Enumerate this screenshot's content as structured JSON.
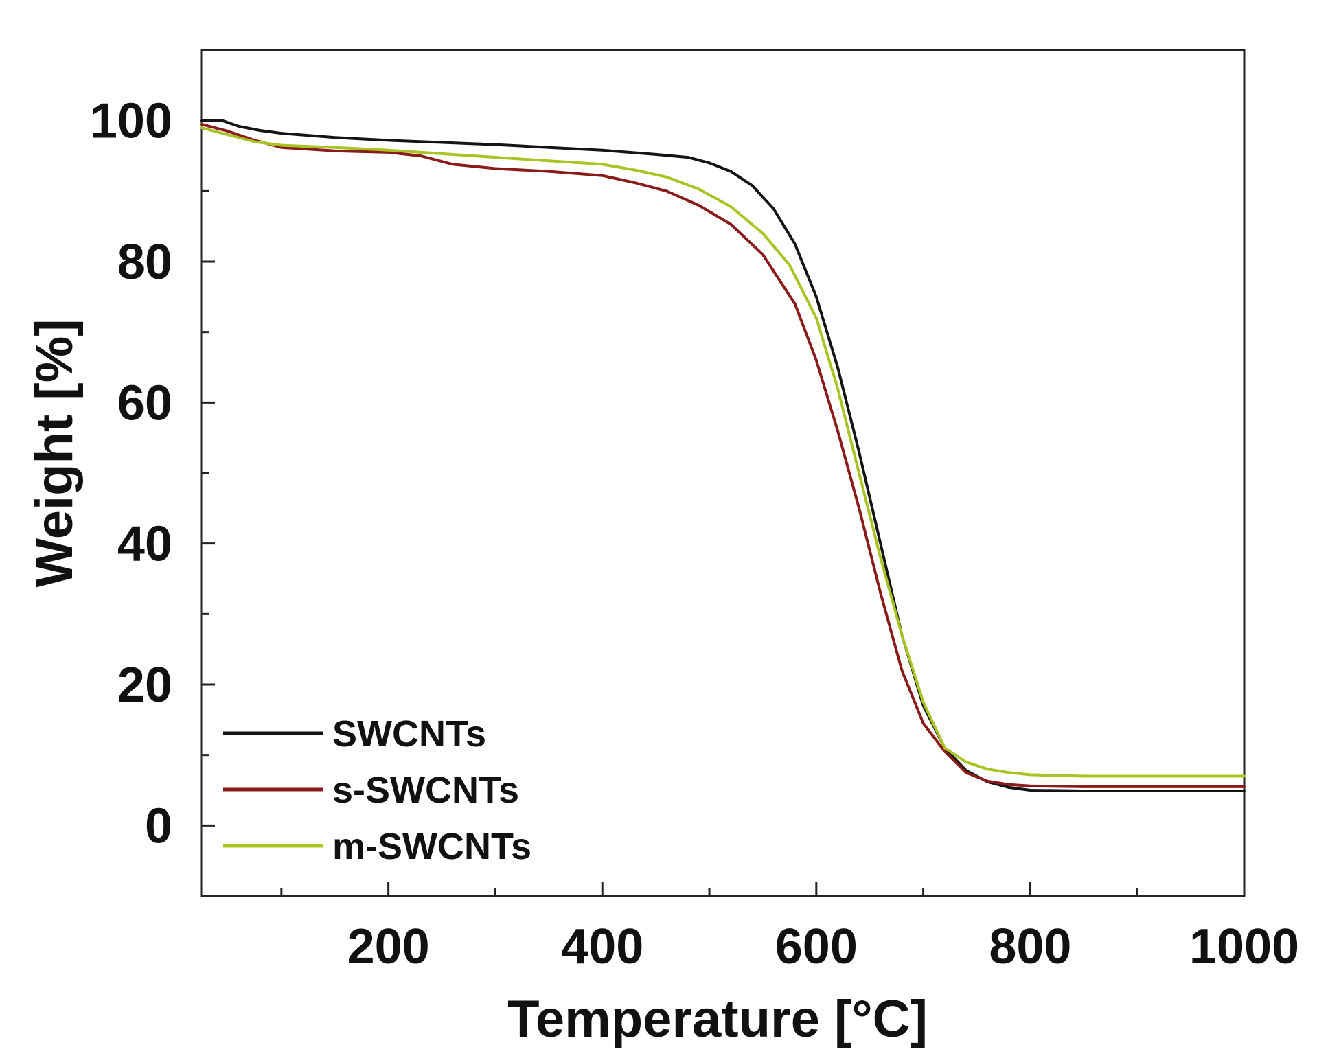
{
  "chart_data": {
    "type": "line",
    "title": "",
    "xlabel": "Temperature [°C]",
    "ylabel": "Weight [%]",
    "xlim": [
      25,
      1000
    ],
    "ylim": [
      -10,
      110
    ],
    "xticks": [
      200,
      400,
      600,
      800,
      1000
    ],
    "xminor": [
      100,
      300,
      500,
      700,
      900
    ],
    "yticks": [
      0,
      20,
      40,
      60,
      80,
      100
    ],
    "yminor": [
      10,
      30,
      50,
      70,
      90
    ],
    "grid": false,
    "legend_position": "bottom-left",
    "series": [
      {
        "name": "SWCNTs",
        "color": "#141414",
        "x": [
          25,
          45,
          60,
          80,
          100,
          150,
          200,
          250,
          300,
          350,
          400,
          450,
          480,
          500,
          520,
          540,
          560,
          580,
          600,
          620,
          640,
          660,
          680,
          700,
          720,
          740,
          760,
          780,
          800,
          850,
          900,
          950,
          1000
        ],
        "y": [
          100,
          100,
          99.2,
          98.6,
          98.2,
          97.6,
          97.2,
          96.9,
          96.6,
          96.2,
          95.8,
          95.2,
          94.8,
          94.0,
          92.8,
          90.8,
          87.5,
          82.5,
          75.0,
          65.0,
          53.0,
          40.0,
          27.0,
          17.0,
          11.0,
          7.8,
          6.2,
          5.4,
          5.0,
          4.9,
          4.9,
          4.9,
          4.9
        ]
      },
      {
        "name": "s-SWCNTs",
        "color": "#8b1a1a",
        "x": [
          25,
          50,
          75,
          100,
          150,
          200,
          230,
          260,
          300,
          350,
          400,
          430,
          460,
          490,
          520,
          550,
          580,
          600,
          620,
          640,
          660,
          680,
          700,
          720,
          740,
          760,
          780,
          800,
          850,
          900,
          950,
          1000
        ],
        "y": [
          99.5,
          98.5,
          97.2,
          96.2,
          95.7,
          95.5,
          95.0,
          93.8,
          93.2,
          92.8,
          92.2,
          91.2,
          90.0,
          88.0,
          85.3,
          81.0,
          74.0,
          66.0,
          56.0,
          45.0,
          33.0,
          22.0,
          14.5,
          10.5,
          7.5,
          6.3,
          5.8,
          5.6,
          5.5,
          5.5,
          5.5,
          5.5
        ]
      },
      {
        "name": "m-SWCNTs",
        "color": "#a8c424",
        "x": [
          25,
          50,
          75,
          100,
          150,
          200,
          250,
          300,
          350,
          400,
          430,
          460,
          490,
          520,
          550,
          575,
          600,
          620,
          640,
          660,
          680,
          700,
          720,
          740,
          760,
          780,
          800,
          850,
          900,
          950,
          1000
        ],
        "y": [
          99.0,
          98.0,
          97.0,
          96.5,
          96.2,
          95.8,
          95.3,
          94.8,
          94.3,
          93.8,
          93.0,
          92.0,
          90.3,
          87.8,
          84.0,
          79.5,
          72.0,
          62.0,
          50.0,
          38.0,
          27.0,
          17.5,
          11.0,
          9.0,
          8.0,
          7.5,
          7.2,
          7.0,
          7.0,
          7.0,
          7.0
        ]
      }
    ]
  }
}
